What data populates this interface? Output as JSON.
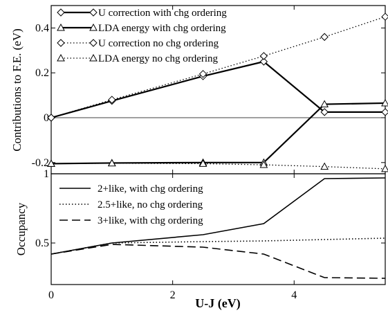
{
  "chart_data": [
    {
      "type": "line",
      "ylabel": "Contributions to F.E. (eV)",
      "xlim": [
        0,
        5.5
      ],
      "ylim": [
        -0.25,
        0.5
      ],
      "x_ticks": [
        0,
        2,
        4
      ],
      "y_ticks": [
        -0.2,
        0,
        0.2,
        0.4
      ],
      "y_tick_labels": [
        "-0.2",
        "0",
        "0.2",
        "0.4"
      ],
      "zero_line": true,
      "legend_position": "top-left",
      "series": [
        {
          "name": "U correction with chg ordering",
          "marker": "diamond",
          "style": "solid",
          "width": 2.2,
          "x": [
            0,
            1,
            2.5,
            3.5,
            4.5,
            5.5
          ],
          "y": [
            0,
            0.075,
            0.185,
            0.25,
            0.025,
            0.025
          ]
        },
        {
          "name": "LDA energy with chg ordering",
          "marker": "triangle",
          "style": "solid",
          "width": 2.2,
          "x": [
            0,
            1,
            2.5,
            3.5,
            4.5,
            5.5
          ],
          "y": [
            -0.205,
            -0.202,
            -0.2,
            -0.2,
            0.06,
            0.065
          ]
        },
        {
          "name": "U correction no chg ordering",
          "marker": "diamond",
          "style": "dotted",
          "width": 1.3,
          "x": [
            0,
            1,
            2.5,
            3.5,
            4.5,
            5.5
          ],
          "y": [
            0,
            0.08,
            0.195,
            0.275,
            0.36,
            0.45
          ]
        },
        {
          "name": "LDA energy no chg ordering",
          "marker": "triangle",
          "style": "dotted",
          "width": 1.3,
          "x": [
            0,
            1,
            2.5,
            3.5,
            4.5,
            5.5
          ],
          "y": [
            -0.205,
            -0.203,
            -0.205,
            -0.21,
            -0.218,
            -0.228
          ]
        }
      ]
    },
    {
      "type": "line",
      "xlabel": "U-J (eV)",
      "ylabel": "Occupancy",
      "xlim": [
        0,
        5.5
      ],
      "ylim": [
        0.2,
        1
      ],
      "x_ticks": [
        0,
        2,
        4
      ],
      "x_tick_labels": [
        "0",
        "2",
        "4"
      ],
      "y_ticks": [
        0.5,
        1
      ],
      "y_tick_labels": [
        "0.5",
        "1"
      ],
      "legend_position": "top-left",
      "series": [
        {
          "name": "2+like, with chg ordering",
          "style": "solid",
          "width": 1.6,
          "x": [
            0,
            1,
            2.5,
            3.5,
            4.5,
            5.5
          ],
          "y": [
            0.42,
            0.5,
            0.56,
            0.64,
            0.965,
            0.97
          ]
        },
        {
          "name": "2.5+like, no chg ordering",
          "style": "dotted",
          "width": 1.6,
          "x": [
            0,
            1,
            2.5,
            3.5,
            4.5,
            5.5
          ],
          "y": [
            0.42,
            0.5,
            0.51,
            0.515,
            0.525,
            0.535
          ]
        },
        {
          "name": "3+like, with chg ordering",
          "style": "dashed",
          "width": 1.6,
          "x": [
            0,
            1,
            2.5,
            3.5,
            4.5,
            5.5
          ],
          "y": [
            0.42,
            0.49,
            0.47,
            0.42,
            0.25,
            0.245
          ]
        }
      ]
    }
  ]
}
